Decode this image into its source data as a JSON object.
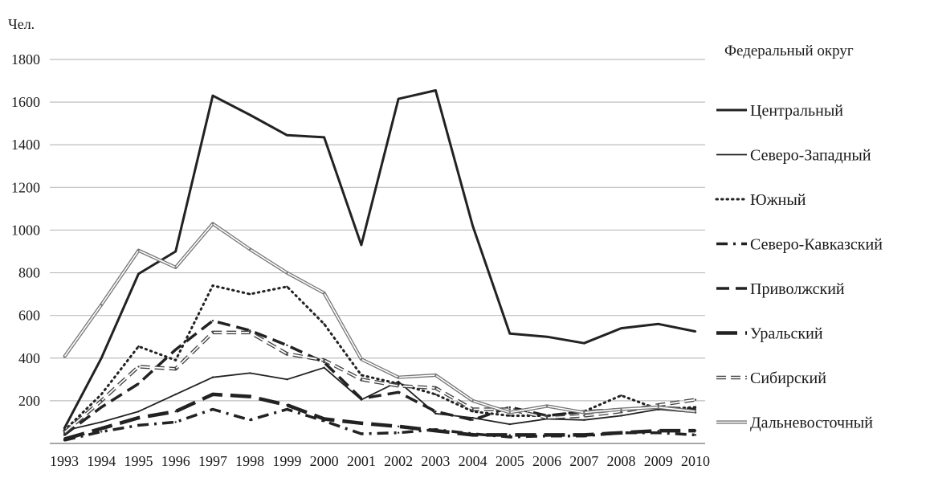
{
  "chart_data": {
    "type": "line",
    "ylabel": "Чел.",
    "legend_title": "Федеральный округ",
    "legend_position": "right",
    "grid": true,
    "ylim": [
      0,
      1800
    ],
    "yticks": [
      200,
      400,
      600,
      800,
      1000,
      1200,
      1400,
      1600,
      1800
    ],
    "categories": [
      "1993",
      "1994",
      "1995",
      "1996",
      "1997",
      "1998",
      "1999",
      "2000",
      "2001",
      "2002",
      "2003",
      "2004",
      "2005",
      "2006",
      "2007",
      "2008",
      "2009",
      "2010"
    ],
    "series": [
      {
        "name": "Центральный",
        "style": "solid-thick",
        "color": "#222222",
        "values": [
          70,
          400,
          795,
          900,
          1630,
          1540,
          1445,
          1435,
          930,
          1615,
          1655,
          1020,
          515,
          500,
          470,
          540,
          560,
          525
        ]
      },
      {
        "name": "Северо-Западный",
        "style": "solid-thin",
        "color": "#222222",
        "values": [
          60,
          100,
          150,
          230,
          310,
          330,
          300,
          355,
          205,
          290,
          140,
          120,
          90,
          115,
          110,
          130,
          160,
          145
        ]
      },
      {
        "name": "Южный",
        "style": "dotted",
        "color": "#222222",
        "values": [
          60,
          230,
          455,
          390,
          740,
          700,
          735,
          560,
          320,
          280,
          230,
          150,
          130,
          130,
          150,
          225,
          160,
          170
        ]
      },
      {
        "name": "Северо-Кавказский",
        "style": "dash-dot",
        "color": "#222222",
        "values": [
          15,
          55,
          85,
          100,
          160,
          110,
          160,
          105,
          45,
          50,
          65,
          45,
          30,
          35,
          35,
          50,
          50,
          40
        ]
      },
      {
        "name": "Приволжский",
        "style": "dashed",
        "color": "#222222",
        "values": [
          40,
          170,
          280,
          440,
          575,
          530,
          460,
          380,
          210,
          240,
          150,
          110,
          170,
          130,
          150,
          160,
          170,
          160
        ]
      },
      {
        "name": "Уральский",
        "style": "long-dash",
        "color": "#222222",
        "values": [
          20,
          70,
          120,
          150,
          230,
          220,
          180,
          115,
          95,
          80,
          60,
          40,
          40,
          40,
          40,
          50,
          60,
          60
        ]
      },
      {
        "name": "Сибирский",
        "style": "double-dashed",
        "color": "#444444",
        "values": [
          50,
          200,
          360,
          350,
          520,
          520,
          420,
          390,
          300,
          270,
          260,
          160,
          160,
          120,
          130,
          150,
          180,
          205
        ]
      },
      {
        "name": "Дальневосточный",
        "style": "double-solid",
        "color": "#777777",
        "values": [
          405,
          650,
          905,
          825,
          1030,
          910,
          800,
          705,
          395,
          310,
          320,
          200,
          145,
          175,
          145,
          160,
          170,
          150
        ]
      }
    ]
  }
}
